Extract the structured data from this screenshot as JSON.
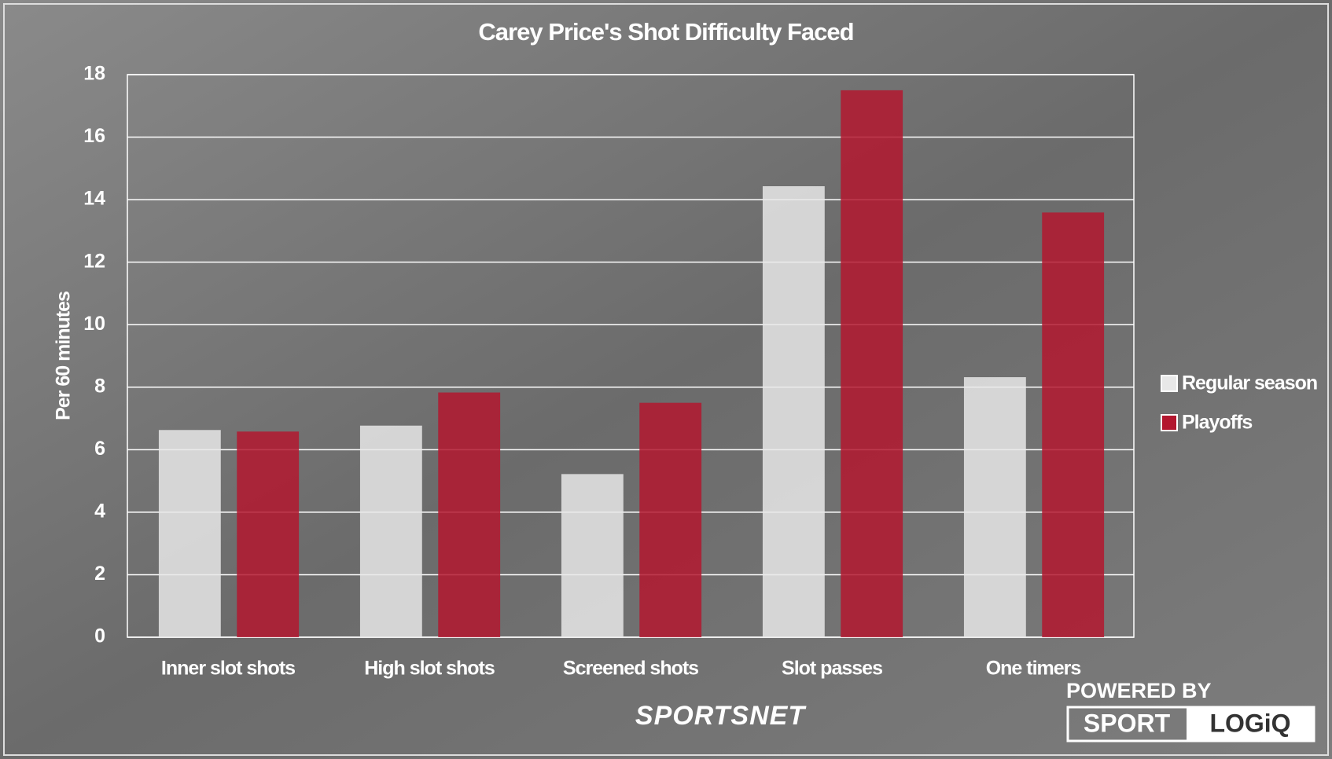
{
  "chart_data": {
    "type": "bar",
    "title": "Carey Price's Shot Difficulty Faced",
    "y_label": "Per 60 minutes",
    "categories": [
      "Inner slot shots",
      "High slot shots",
      "Screened shots",
      "Slot passes",
      "One timers"
    ],
    "series": [
      {
        "name": "Regular season",
        "color": "#e8e8e8",
        "values": [
          6.63,
          6.77,
          5.22,
          14.43,
          8.32
        ]
      },
      {
        "name": "Playoffs",
        "color": "#b3172f",
        "values": [
          6.58,
          7.83,
          7.5,
          17.5,
          13.59
        ]
      }
    ],
    "ylim": [
      0,
      18
    ],
    "yticks": [
      0,
      2,
      4,
      6,
      8,
      10,
      12,
      14,
      16,
      18
    ],
    "grid": true,
    "legend": "right"
  },
  "branding": {
    "broadcaster": "SPORTSNET",
    "powered_by": "POWERED BY",
    "partner_left": "SPORT",
    "partner_right": "LOGiQ"
  }
}
